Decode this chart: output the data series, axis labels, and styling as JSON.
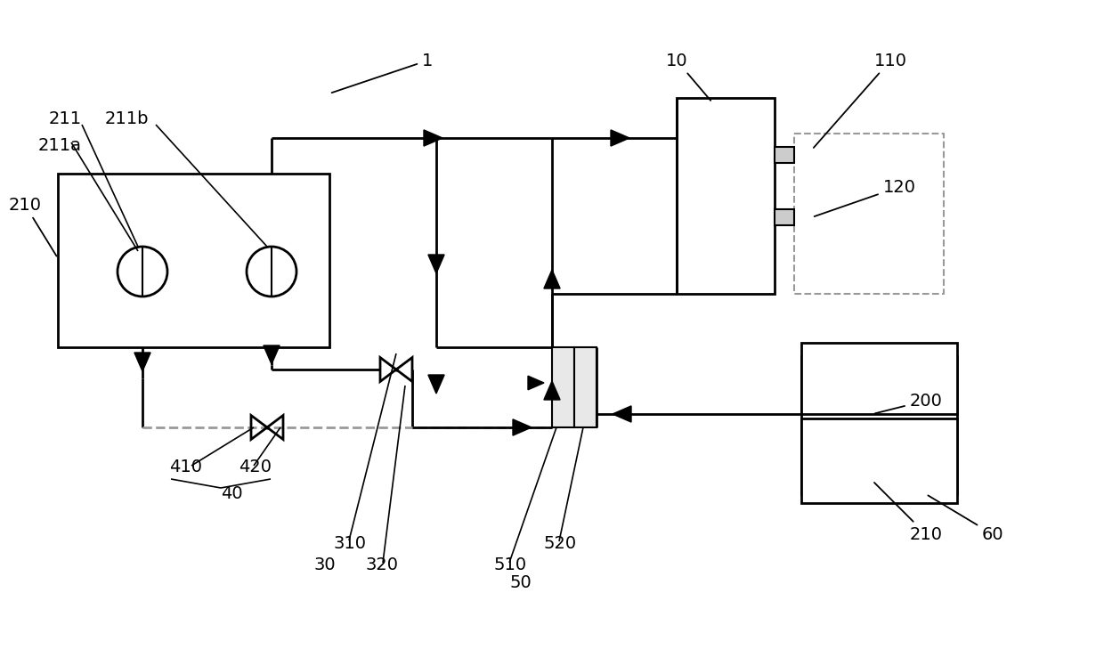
{
  "bg_color": "#ffffff",
  "lc": "#000000",
  "dc": "#999999",
  "lw": 2.0,
  "fs": 14
}
